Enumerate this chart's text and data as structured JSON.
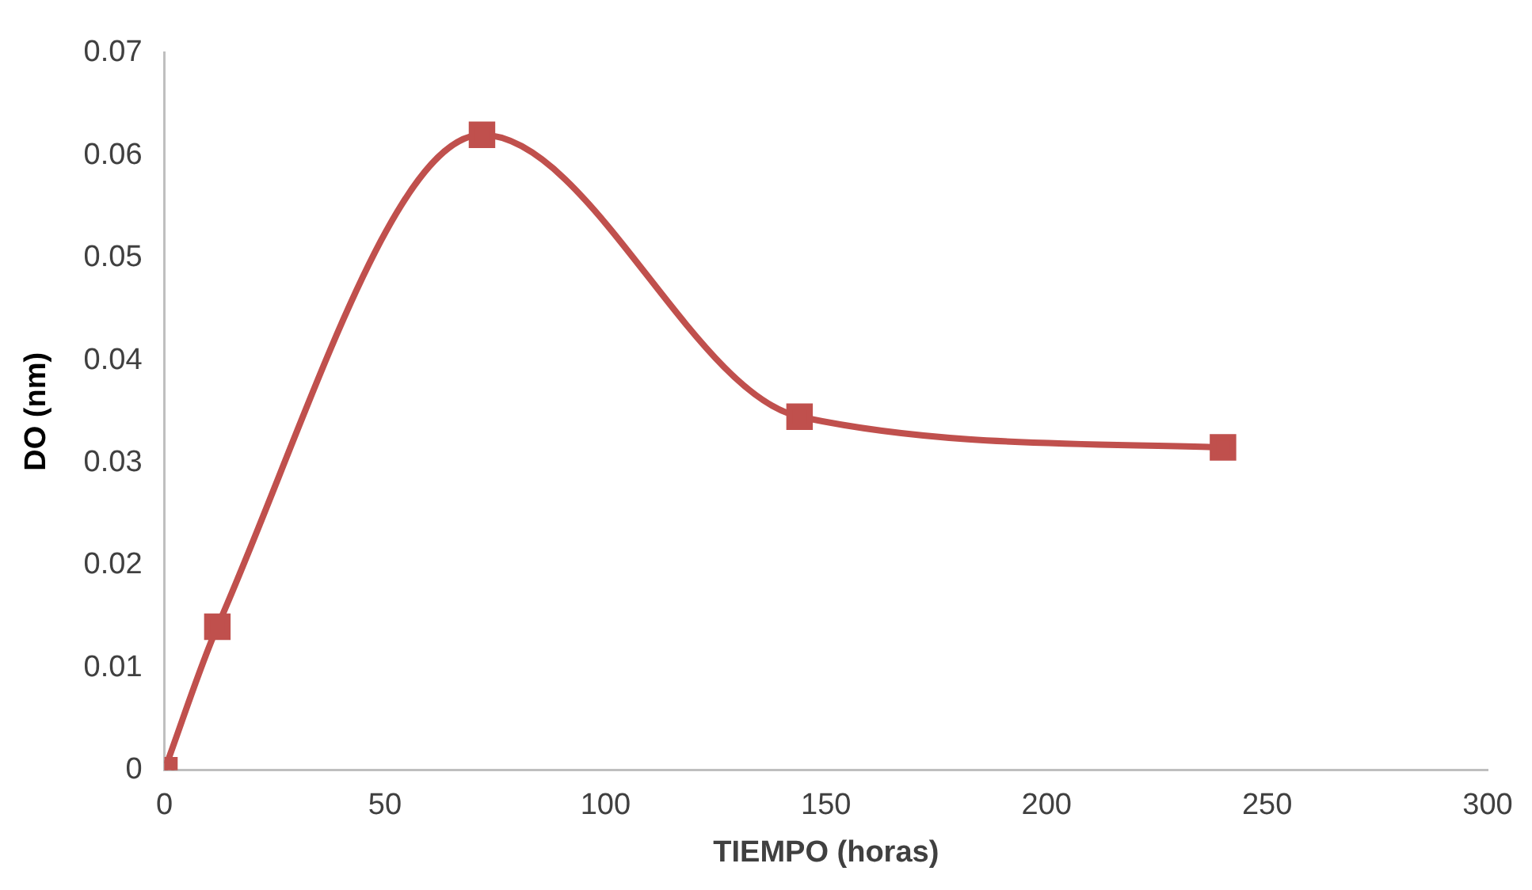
{
  "chart_data": {
    "type": "line",
    "xlabel": "TIEMPO (horas)",
    "ylabel": "DO (nm)",
    "x": [
      0,
      12,
      72,
      144,
      240
    ],
    "series": [
      {
        "color": "#c0504d",
        "values": [
          0,
          0.014,
          0.062,
          0.0345,
          0.0315
        ]
      }
    ],
    "xlim": [
      0,
      300
    ],
    "xticks": [
      0,
      50,
      100,
      150,
      200,
      250,
      300
    ],
    "ylim": [
      0,
      0.07
    ],
    "yticks": [
      0,
      0.01,
      0.02,
      0.03,
      0.04,
      0.05,
      0.06,
      0.07
    ],
    "grid": false,
    "legend": false,
    "marker": "square",
    "line_style": "solid"
  }
}
